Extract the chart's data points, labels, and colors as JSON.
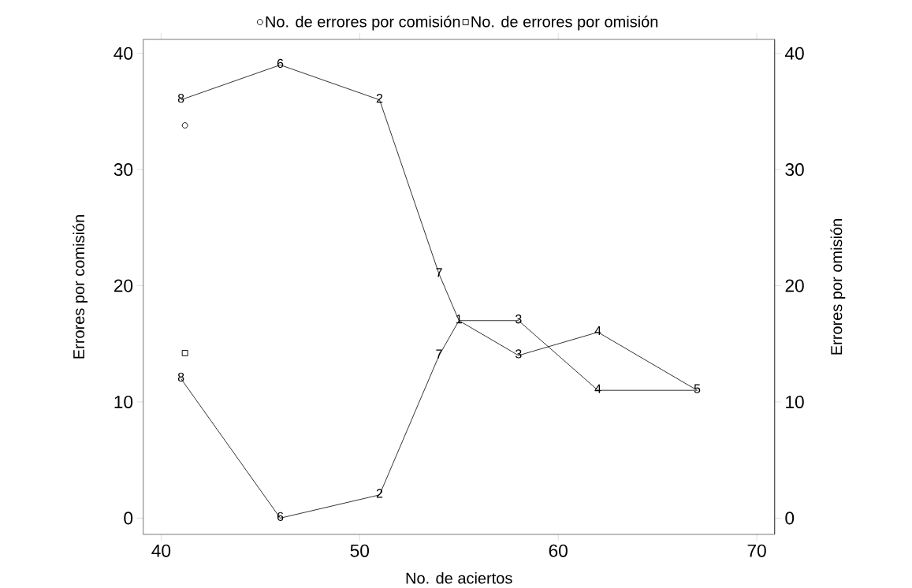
{
  "chart_data": {
    "type": "line",
    "xlabel": "No. de aciertos",
    "ylabel": "Errores por comisión",
    "y2label": "Errores por omisión",
    "xlim": [
      39.1,
      70.9
    ],
    "xticks": [
      40,
      50,
      60,
      70
    ],
    "ylim": [
      -1.4,
      41.2
    ],
    "yticks": [
      0,
      10,
      20,
      30,
      40
    ],
    "y2lim": [
      -1.4,
      41.2
    ],
    "y2ticks": [
      0,
      10,
      20,
      30,
      40
    ],
    "legend": "top",
    "series": [
      {
        "name": "No. de errores por comisión",
        "type": "scatter",
        "marker": "circle",
        "color": "#000000",
        "x": [
          41.2
        ],
        "values": [
          33.8
        ]
      },
      {
        "name": "No. de errores por omisión",
        "type": "scatter",
        "marker": "square",
        "color": "#000000",
        "axis": "y2",
        "x": [
          41.2
        ],
        "values": [
          14.2
        ]
      },
      {
        "marker": "none",
        "color": "#000000",
        "x": [
          41,
          46,
          51,
          54,
          55,
          58,
          62,
          67
        ],
        "values": [
          36,
          39,
          36,
          21,
          17,
          14,
          16,
          11
        ]
      },
      {
        "marker": "none",
        "color": "#000000",
        "axis": "y2",
        "x": [
          41,
          46,
          51,
          54,
          55,
          58,
          62,
          67
        ],
        "values": [
          12,
          0,
          2,
          14,
          17,
          17,
          11,
          11
        ]
      }
    ],
    "annotations": [
      {
        "text": "8",
        "x": 41,
        "y": 36
      },
      {
        "text": "6",
        "x": 46,
        "y": 39
      },
      {
        "text": "2",
        "x": 51,
        "y": 36
      },
      {
        "text": "7",
        "x": 54,
        "y": 21
      },
      {
        "text": "1",
        "x": 55,
        "y": 17
      },
      {
        "text": "3",
        "x": 58,
        "y": 14
      },
      {
        "text": "4",
        "x": 62,
        "y": 16
      },
      {
        "text": "5",
        "x": 67,
        "y": 11
      },
      {
        "text": "8",
        "x": 41,
        "y": 12
      },
      {
        "text": "6",
        "x": 46,
        "y": 0
      },
      {
        "text": "2",
        "x": 51,
        "y": 2
      },
      {
        "text": "7",
        "x": 54,
        "y": 14
      },
      {
        "text": "3",
        "x": 58,
        "y": 17
      },
      {
        "text": "4",
        "x": 62,
        "y": 11
      }
    ]
  }
}
